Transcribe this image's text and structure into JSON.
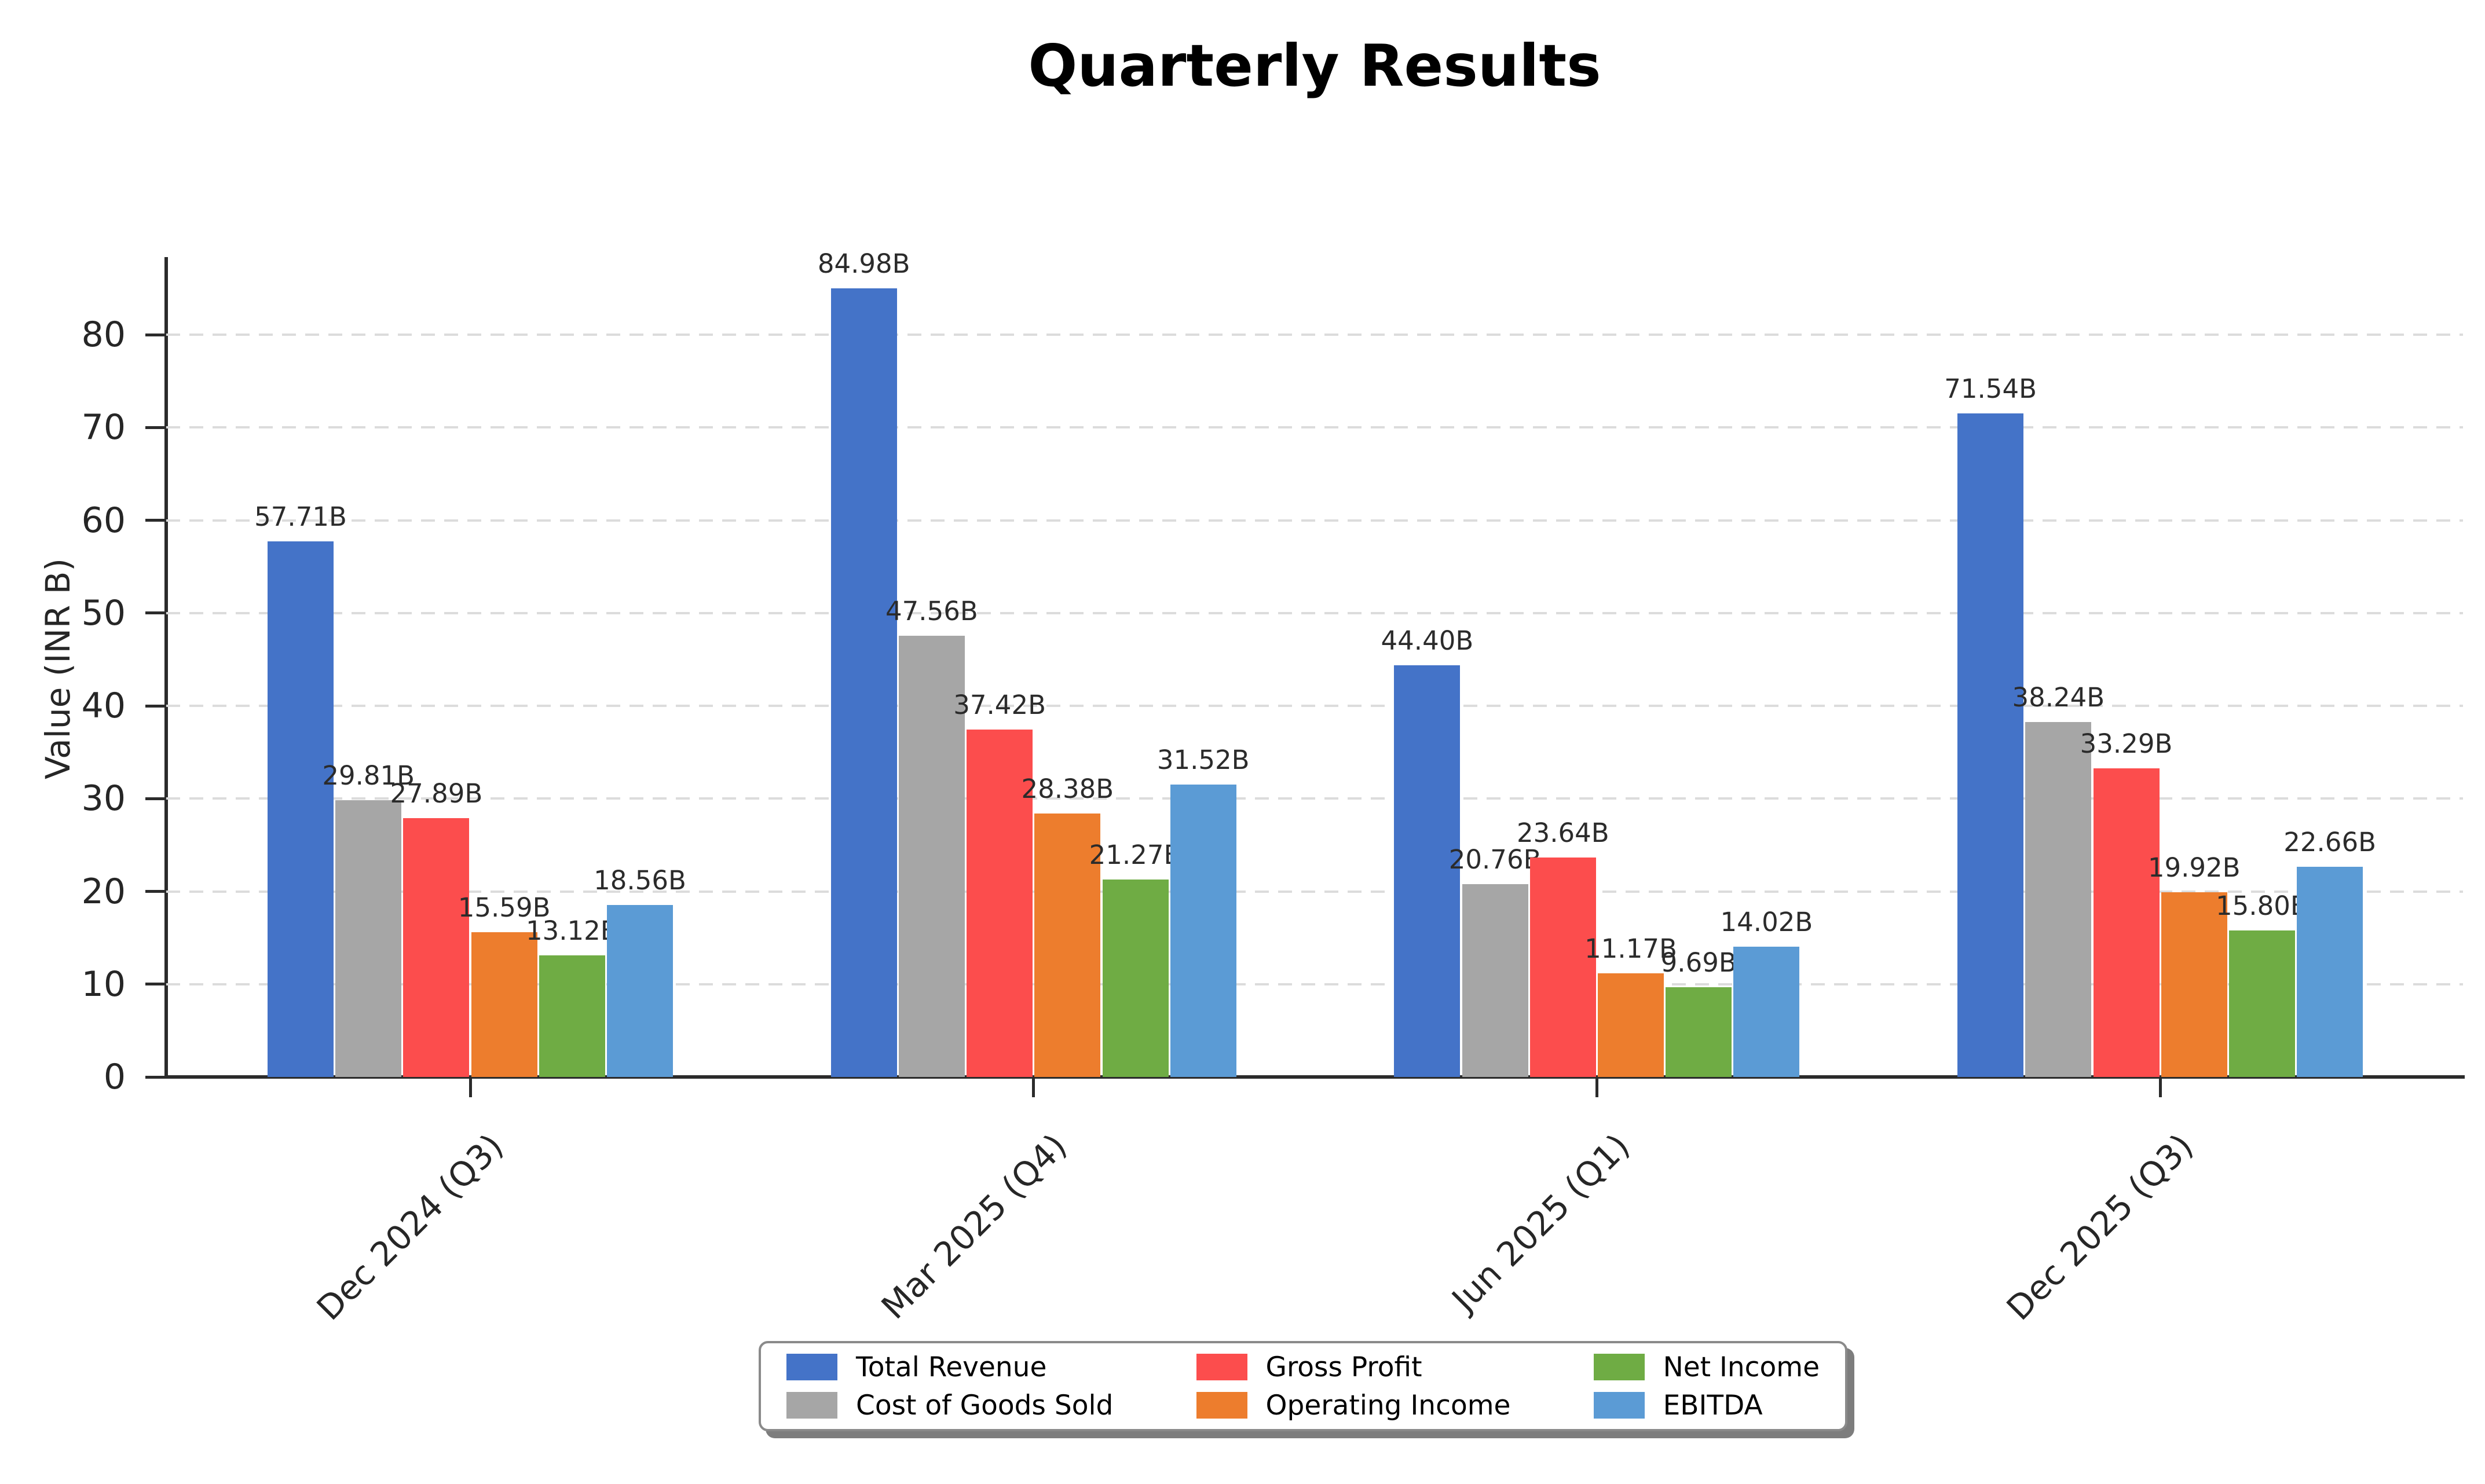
{
  "chart_data": {
    "type": "bar",
    "title": "Quarterly Results",
    "ylabel": "Value (INR B)",
    "value_suffix": "B",
    "categories": [
      "Dec 2024 (Q3)",
      "Mar 2025 (Q4)",
      "Jun 2025 (Q1)",
      "Dec 2025 (Q3)"
    ],
    "series": [
      {
        "name": "Total Revenue",
        "color": "#4473C8",
        "values": [
          57.71,
          84.98,
          44.4,
          71.54
        ],
        "labels": [
          "57.71B",
          "84.98B",
          "44.40B",
          "71.54B"
        ]
      },
      {
        "name": "Cost of Goods Sold",
        "color": "#A6A6A6",
        "values": [
          29.81,
          47.56,
          20.76,
          38.24
        ],
        "labels": [
          "29.81B",
          "47.56B",
          "20.76B",
          "38.24B"
        ]
      },
      {
        "name": "Gross Profit",
        "color": "#FC4D4D",
        "values": [
          27.89,
          37.42,
          23.64,
          33.29
        ],
        "labels": [
          "27.89B",
          "37.42B",
          "23.64B",
          "33.29B"
        ]
      },
      {
        "name": "Operating Income",
        "color": "#ED7D2D",
        "values": [
          15.59,
          28.38,
          11.17,
          19.92
        ],
        "labels": [
          "15.59B",
          "28.38B",
          "11.17B",
          "19.92B"
        ]
      },
      {
        "name": "Net Income",
        "color": "#6FAC44",
        "values": [
          13.12,
          21.27,
          9.69,
          15.8
        ],
        "labels": [
          "13.12B",
          "21.27B",
          "9.69B",
          "15.80B"
        ]
      },
      {
        "name": "EBITDA",
        "color": "#5B9BD5",
        "values": [
          18.56,
          31.52,
          14.02,
          22.66
        ],
        "labels": [
          "18.56B",
          "31.52B",
          "14.02B",
          "22.66B"
        ]
      }
    ],
    "y_ticks": [
      0,
      10,
      20,
      30,
      40,
      50,
      60,
      70,
      80
    ],
    "ylim": [
      0,
      88
    ],
    "grid": "horizontal dashed",
    "legend_position": "bottom center",
    "theme": {
      "axis_color": "#2b2b2b",
      "gridline_color": "#dcdcdc",
      "label_color": "#262626",
      "background": "#ffffff"
    }
  }
}
